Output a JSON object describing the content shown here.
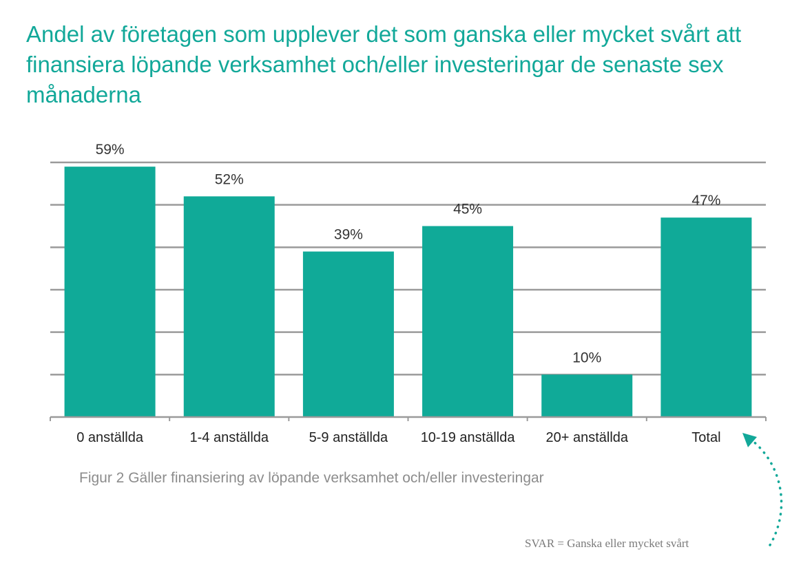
{
  "title": "Andel av företagen som upplever det som ganska eller mycket svårt att finansiera löpande verksamhet och/eller investeringar de senaste sex månaderna",
  "caption": "Figur 2 Gäller finansiering av löpande verksamhet och/eller investeringar",
  "note": "SVAR = Ganska eller mycket svårt",
  "colors": {
    "title": "#12a899",
    "bar": "#10aa98",
    "grid": "#9a9a9a",
    "arrow": "#12a899"
  },
  "chart_data": {
    "type": "bar",
    "categories": [
      "0 anställda",
      "1-4 anställda",
      "5-9 anställda",
      "10-19 anställda",
      "20+ anställda",
      "Total"
    ],
    "values": [
      59,
      52,
      39,
      45,
      10,
      47
    ],
    "value_labels": [
      "59%",
      "52%",
      "39%",
      "45%",
      "10%",
      "47%"
    ],
    "ylim": [
      0,
      60
    ],
    "grid": true,
    "xlabel": "",
    "ylabel": ""
  }
}
